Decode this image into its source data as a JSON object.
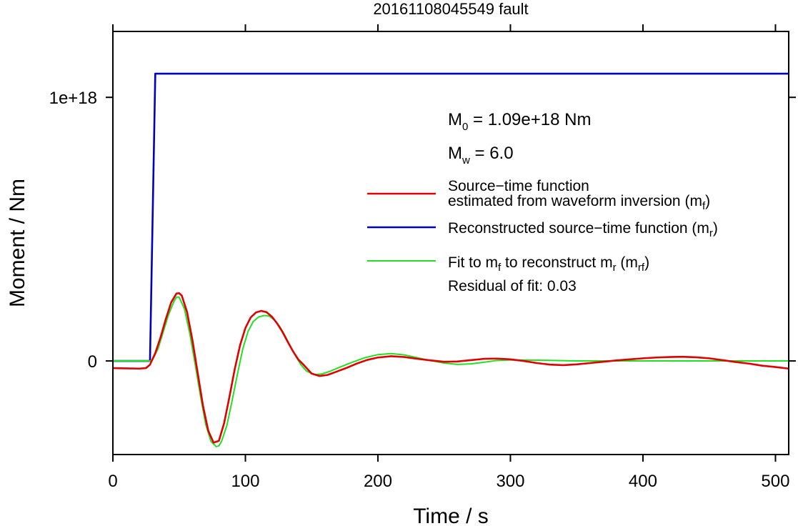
{
  "chart_data": {
    "type": "line",
    "title": "20161108045549 fault",
    "xlabel": "Time / s",
    "ylabel": "Moment / Nm",
    "xlim": [
      0,
      510
    ],
    "ylim": [
      -3.55e+17,
      1.25e+18
    ],
    "x_ticks": [
      0,
      100,
      200,
      300,
      400,
      500
    ],
    "x_tick_labels": [
      "0",
      "100",
      "200",
      "300",
      "400",
      "500"
    ],
    "y_ticks": [
      0,
      1e+18
    ],
    "y_tick_labels": [
      "0",
      "1e+18"
    ],
    "grid": false,
    "annotations": {
      "m0_sym": "M",
      "m0_sub": "0",
      "m0_text": " = 1.09e+18 Nm",
      "mw_sym": "M",
      "mw_sub": "w",
      "mw_text": " = 6.0",
      "residual": "Residual of fit: 0.03"
    },
    "legend": {
      "placement": "right",
      "entries": [
        {
          "color": "#e00000",
          "line1": "Source−time function",
          "line2a": "estimated from waveform inversion (m",
          "line2sub": "f",
          "line2b": ")"
        },
        {
          "color": "#0000c0",
          "line1a": "Reconstructed source−time function (m",
          "line1sub": "r",
          "line1b": ")"
        },
        {
          "color": "#22e022",
          "p1": "Fit to m",
          "s1": "f",
          "p2": " to reconstruct m",
          "s2": "r",
          "p3": " (m",
          "s3": "rf",
          "p4": ")"
        }
      ]
    },
    "series": [
      {
        "key": "mf",
        "color": "#e00000",
        "x": [
          0,
          10,
          20,
          25,
          28,
          32,
          36,
          40,
          44,
          48,
          50,
          52,
          56,
          60,
          64,
          68,
          72,
          76,
          80,
          84,
          88,
          92,
          96,
          100,
          104,
          108,
          112,
          116,
          120,
          124,
          128,
          132,
          136,
          140,
          144,
          150,
          156,
          162,
          168,
          176,
          184,
          192,
          200,
          210,
          220,
          230,
          240,
          250,
          260,
          270,
          280,
          290,
          300,
          310,
          320,
          330,
          340,
          350,
          360,
          370,
          380,
          390,
          400,
          410,
          420,
          430,
          440,
          450,
          460,
          470,
          480,
          490,
          500,
          510
        ],
        "y": [
          -2.7e+16,
          -2.8e+16,
          -2.9e+16,
          -2.7e+16,
          -1.4e+16,
          3e+16,
          9e+16,
          1.6e+17,
          2.22e+17,
          2.56e+17,
          2.57e+17,
          2.48e+17,
          1.85e+17,
          8e+16,
          -4.5e+16,
          -1.7e+17,
          -2.65e+17,
          -3.1e+17,
          -3.03e+17,
          -2.35e+17,
          -1.35e+17,
          -3e+16,
          6e+16,
          1.25e+17,
          1.65e+17,
          1.84e+17,
          1.9e+17,
          1.85e+17,
          1.68e+17,
          1.42e+17,
          1.1e+17,
          7.2e+16,
          3.6e+16,
          5000000000000000.0,
          -1.5e+16,
          -4.8e+16,
          -5.7e+16,
          -5.3e+16,
          -4.2e+16,
          -2.7e+16,
          -1e+16,
          4000000000000000.0,
          1.3e+16,
          1.8e+16,
          1.5e+16,
          8000000000000000.0,
          2000000000000000.0,
          -3000000000000000.0,
          -2000000000000000.0,
          3000000000000000.0,
          8000000000000000.0,
          9000000000000000.0,
          6000000000000000.0,
          0,
          -8000000000000000.0,
          -1.4e+16,
          -1.6e+16,
          -1.3e+16,
          -8000000000000000.0,
          -3000000000000000.0,
          2000000000000000.0,
          6000000000000000.0,
          1e+16,
          1.3e+16,
          1.5e+16,
          1.6e+16,
          1.4e+16,
          1e+16,
          3000000000000000.0,
          -4000000000000000.0,
          -1e+16,
          -1.8e+16,
          -2.3e+16,
          -2.9e+16
        ]
      },
      {
        "key": "mr",
        "color": "#0000c0",
        "x": [
          0,
          28,
          32,
          510
        ],
        "y": [
          0,
          0,
          1.09e+18,
          1.09e+18
        ]
      },
      {
        "key": "mrf",
        "color": "#22e022",
        "x": [
          0,
          28,
          30,
          34,
          38,
          42,
          46,
          48,
          50,
          54,
          58,
          62,
          66,
          70,
          74,
          78,
          80,
          82,
          86,
          90,
          94,
          98,
          102,
          106,
          110,
          114,
          116,
          118,
          122,
          126,
          130,
          134,
          138,
          142,
          146,
          152,
          158,
          164,
          172,
          180,
          190,
          200,
          210,
          220,
          230,
          240,
          250,
          260,
          270,
          280,
          290,
          300,
          320,
          350,
          400,
          450,
          510
        ],
        "y": [
          0,
          0,
          5000000000000000.0,
          4.5e+16,
          1.1e+17,
          1.75e+17,
          2.25e+17,
          2.42e+17,
          2.42e+17,
          1.98e+17,
          1.05e+17,
          -1e+16,
          -1.3e+17,
          -2.4e+17,
          -3.05e+17,
          -3.25e+17,
          -3.22e+17,
          -3.05e+17,
          -2.45e+17,
          -1.5e+17,
          -5e+16,
          4.5e+16,
          1.12e+17,
          1.5e+17,
          1.67e+17,
          1.72e+17,
          1.72e+17,
          1.7e+17,
          1.55e+17,
          1.3e+17,
          9.5e+16,
          5.5e+16,
          1.8e+16,
          -1.5e+16,
          -3.8e+16,
          -5.2e+16,
          -4.9e+16,
          -3.9e+16,
          -2.2e+16,
          -6000000000000000.0,
          1.2e+16,
          2.4e+16,
          2.8e+16,
          2.3e+16,
          1.2e+16,
          1000000000000000.0,
          -8000000000000000.0,
          -1.3e+16,
          -1.1e+16,
          -5000000000000000.0,
          2000000000000000.0,
          4000000000000000.0,
          3000000000000000.0,
          0,
          0,
          0,
          0
        ]
      }
    ]
  }
}
